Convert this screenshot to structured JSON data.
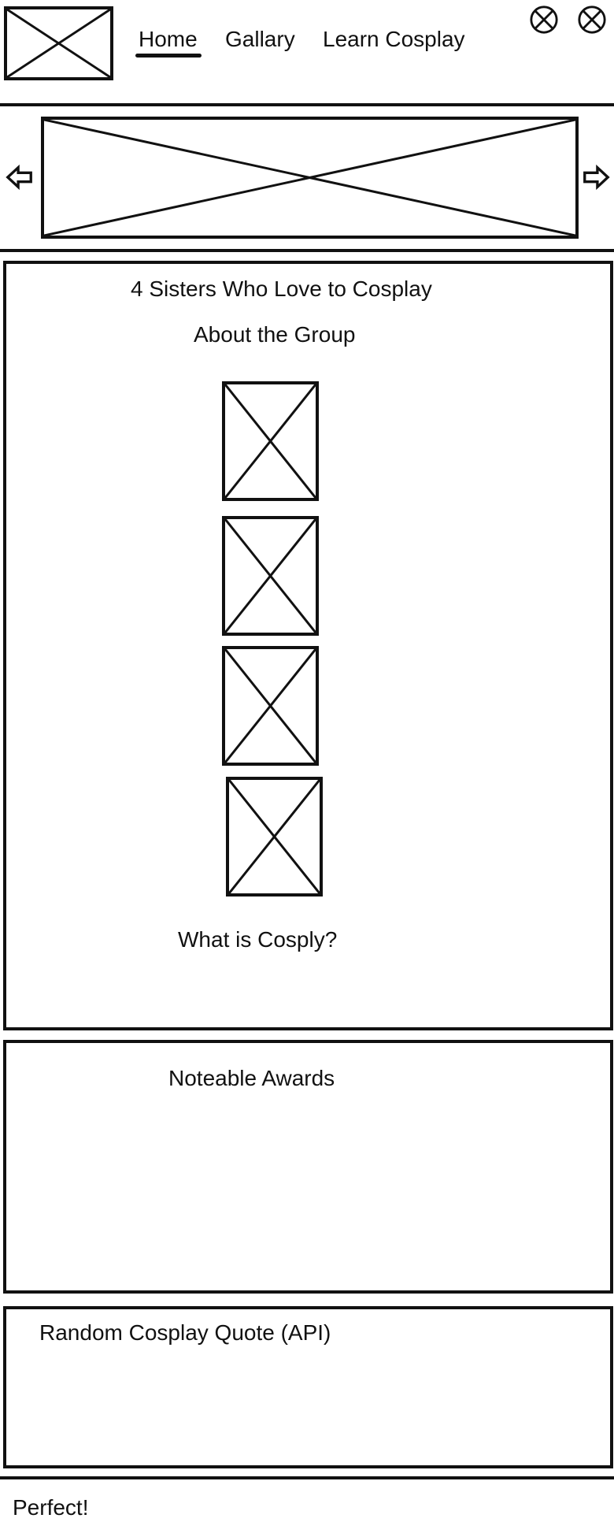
{
  "header": {
    "logo_icon": "image-placeholder-icon",
    "nav": {
      "home": "Home",
      "gallery": "Gallary",
      "learn": "Learn Cosplay"
    },
    "actions": [
      "close-circle-icon",
      "close-circle-icon"
    ]
  },
  "carousel": {
    "prev_icon": "arrow-left-icon",
    "next_icon": "arrow-right-icon",
    "slide_icon": "image-placeholder-icon"
  },
  "about": {
    "title": "4 Sisters Who Love to Cosplay",
    "subtitle": "About the Group",
    "member_images": [
      "image-placeholder-icon",
      "image-placeholder-icon",
      "image-placeholder-icon",
      "image-placeholder-icon"
    ],
    "question": "What is Cosply?"
  },
  "awards": {
    "title": "Noteable Awards"
  },
  "quote": {
    "title": "Random Cosplay Quote (API)"
  },
  "footer": {
    "text": "Perfect!"
  }
}
